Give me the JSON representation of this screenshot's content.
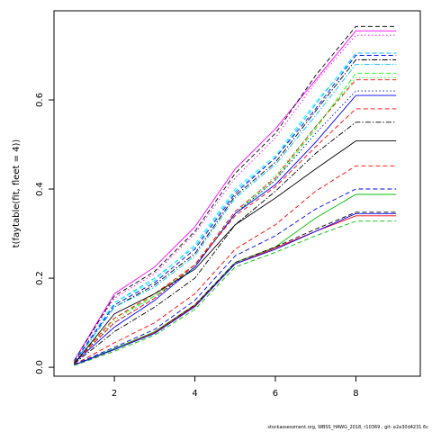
{
  "footnote": "stockassessment.org, WBSS_HAWG_2018, r10369 , git: e2a30d4231 6c",
  "chart_data": {
    "type": "line",
    "title": "",
    "xlabel": "",
    "ylabel": "t(faytable(fit, fleet = 4))",
    "xlim": [
      0.5,
      9.6
    ],
    "ylim": [
      -0.02,
      0.8
    ],
    "xticks": [
      2,
      4,
      6,
      8
    ],
    "yticks": [
      0.0,
      0.2,
      0.4,
      0.6
    ],
    "grid": false,
    "legend": "none",
    "x": [
      1,
      2,
      3,
      4,
      5,
      6,
      7,
      8,
      9
    ],
    "series": [
      {
        "color": "#FF00FF",
        "dash": "solid",
        "values": [
          0.015,
          0.165,
          0.225,
          0.315,
          0.445,
          0.535,
          0.645,
          0.755,
          0.755
        ]
      },
      {
        "color": "#000000",
        "dash": "dashed",
        "values": [
          0.015,
          0.16,
          0.215,
          0.305,
          0.435,
          0.525,
          0.655,
          0.765,
          0.765
        ]
      },
      {
        "color": "#FF00FF",
        "dash": "dotted",
        "values": [
          0.015,
          0.155,
          0.21,
          0.3,
          0.425,
          0.515,
          0.64,
          0.745,
          0.745
        ]
      },
      {
        "color": "#00BFFF",
        "dash": "dashed",
        "values": [
          0.012,
          0.145,
          0.2,
          0.27,
          0.395,
          0.47,
          0.59,
          0.705,
          0.705
        ]
      },
      {
        "color": "#00FFFF",
        "dash": "dashed",
        "values": [
          0.012,
          0.145,
          0.195,
          0.275,
          0.4,
          0.475,
          0.595,
          0.7,
          0.7
        ]
      },
      {
        "color": "#0000FF",
        "dash": "dashed",
        "values": [
          0.012,
          0.14,
          0.19,
          0.265,
          0.39,
          0.47,
          0.58,
          0.7,
          0.7
        ]
      },
      {
        "color": "#000000",
        "dash": "dashdot",
        "values": [
          0.01,
          0.135,
          0.185,
          0.255,
          0.385,
          0.46,
          0.575,
          0.69,
          0.69
        ]
      },
      {
        "color": "#00BFFF",
        "dash": "dashdot",
        "values": [
          0.01,
          0.135,
          0.18,
          0.25,
          0.38,
          0.455,
          0.565,
          0.68,
          0.68
        ]
      },
      {
        "color": "#00FF00",
        "dash": "dashed",
        "values": [
          0.01,
          0.11,
          0.16,
          0.225,
          0.345,
          0.42,
          0.535,
          0.66,
          0.66
        ]
      },
      {
        "color": "#FF0000",
        "dash": "dashed",
        "values": [
          0.01,
          0.11,
          0.165,
          0.23,
          0.35,
          0.425,
          0.54,
          0.645,
          0.645
        ]
      },
      {
        "color": "#00FF00",
        "dash": "dotted",
        "values": [
          0.01,
          0.105,
          0.16,
          0.23,
          0.345,
          0.43,
          0.54,
          0.65,
          0.65
        ]
      },
      {
        "color": "#0000FF",
        "dash": "dotted",
        "values": [
          0.01,
          0.1,
          0.155,
          0.225,
          0.345,
          0.42,
          0.525,
          0.62,
          0.62
        ]
      },
      {
        "color": "#0000FF",
        "dash": "solid",
        "values": [
          0.01,
          0.09,
          0.15,
          0.225,
          0.345,
          0.41,
          0.505,
          0.61,
          0.61
        ]
      },
      {
        "color": "#FF0000",
        "dash": "dashed",
        "values": [
          0.01,
          0.1,
          0.155,
          0.23,
          0.34,
          0.405,
          0.495,
          0.58,
          0.58
        ]
      },
      {
        "color": "#000000",
        "dash": "dashdot",
        "values": [
          0.008,
          0.08,
          0.135,
          0.2,
          0.32,
          0.395,
          0.48,
          0.55,
          0.55
        ]
      },
      {
        "color": "#000000",
        "dash": "solid",
        "values": [
          0.008,
          0.12,
          0.165,
          0.22,
          0.32,
          0.38,
          0.445,
          0.508,
          0.508
        ]
      },
      {
        "color": "#FF0000",
        "dash": "dashed",
        "values": [
          0.006,
          0.055,
          0.1,
          0.165,
          0.265,
          0.32,
          0.395,
          0.452,
          0.452
        ]
      },
      {
        "color": "#0000FF",
        "dash": "dashed",
        "values": [
          0.006,
          0.045,
          0.085,
          0.15,
          0.25,
          0.295,
          0.355,
          0.4,
          0.4
        ]
      },
      {
        "color": "#00BF00",
        "dash": "solid",
        "values": [
          0.005,
          0.042,
          0.08,
          0.14,
          0.235,
          0.27,
          0.335,
          0.388,
          0.388
        ]
      },
      {
        "color": "#000000",
        "dash": "dashed",
        "values": [
          0.005,
          0.04,
          0.078,
          0.14,
          0.235,
          0.27,
          0.31,
          0.348,
          0.348
        ]
      },
      {
        "color": "#FF0000",
        "dash": "solid",
        "values": [
          0.005,
          0.04,
          0.078,
          0.138,
          0.232,
          0.268,
          0.305,
          0.34,
          0.34
        ]
      },
      {
        "color": "#0000FF",
        "dash": "solid",
        "values": [
          0.005,
          0.04,
          0.076,
          0.136,
          0.232,
          0.265,
          0.305,
          0.345,
          0.345
        ]
      },
      {
        "color": "#00BF00",
        "dash": "dashed",
        "values": [
          0.004,
          0.036,
          0.072,
          0.13,
          0.225,
          0.258,
          0.295,
          0.328,
          0.328
        ]
      }
    ]
  }
}
